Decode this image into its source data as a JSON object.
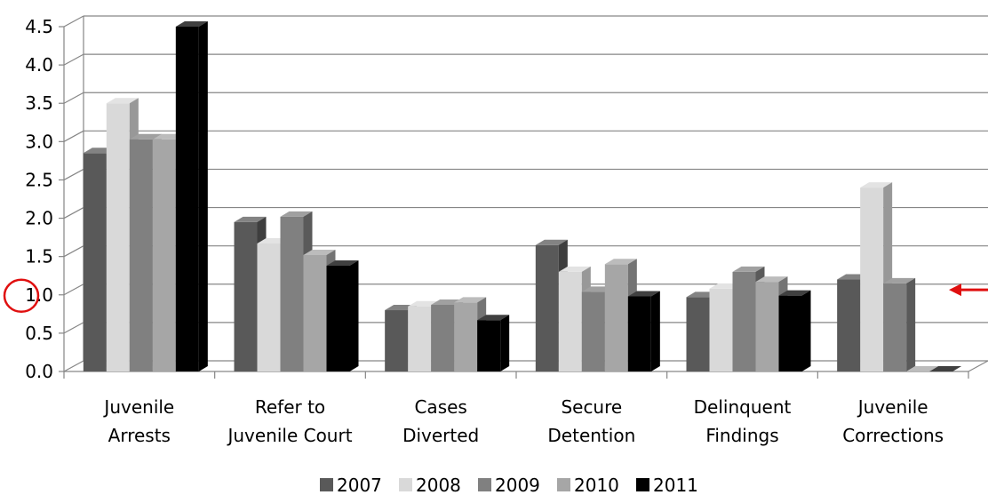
{
  "chart_data": {
    "type": "bar",
    "title": "",
    "xlabel": "",
    "ylabel": "",
    "ylim": [
      0,
      4.5
    ],
    "yticks": [
      "0.0",
      "0.5",
      "1.0",
      "1.5",
      "2.0",
      "2.5",
      "3.0",
      "3.5",
      "4.0",
      "4.5"
    ],
    "categories": [
      [
        "Juvenile",
        "Arrests"
      ],
      [
        "Refer to",
        "Juvenile Court"
      ],
      [
        "Cases",
        "Diverted"
      ],
      [
        "Secure",
        "Detention"
      ],
      [
        "Delinquent",
        "Findings"
      ],
      [
        "Juvenile",
        "Corrections"
      ]
    ],
    "series": [
      {
        "name": "2007",
        "color": "#595959",
        "values": [
          2.85,
          1.95,
          0.8,
          1.65,
          0.97,
          1.2
        ]
      },
      {
        "name": "2008",
        "color": "#d9d9d9",
        "values": [
          3.5,
          1.67,
          0.85,
          1.3,
          1.08,
          2.4
        ]
      },
      {
        "name": "2009",
        "color": "#808080",
        "values": [
          3.03,
          2.02,
          0.87,
          1.04,
          1.3,
          1.15
        ]
      },
      {
        "name": "2010",
        "color": "#a6a6a6",
        "values": [
          3.03,
          1.52,
          0.9,
          1.4,
          1.17,
          0.0
        ]
      },
      {
        "name": "2011",
        "color": "#000000",
        "values": [
          4.5,
          1.38,
          0.67,
          0.98,
          0.99,
          0.0
        ]
      }
    ],
    "grid": true,
    "legend_position": "bottom",
    "annotations": {
      "circled_tick": "1.0",
      "arrow_value": 1.1,
      "arrow_color": "#e01010",
      "circle_color": "#e01010"
    }
  }
}
